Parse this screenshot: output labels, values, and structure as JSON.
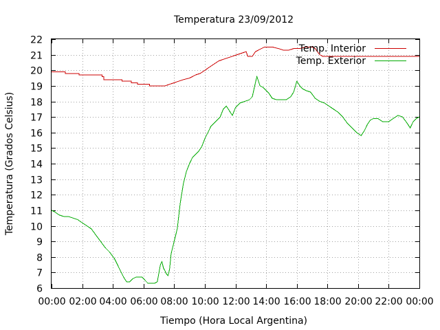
{
  "chart_data": {
    "type": "line",
    "title": "Temperatura 23/09/2012",
    "xlabel": "Tiempo (Hora Local Argentina)",
    "ylabel": "Temperatura (Grados Celsius)",
    "xlim": [
      0,
      24
    ],
    "ylim": [
      6,
      22
    ],
    "x_ticks": [
      {
        "value": 0,
        "label": "00:00"
      },
      {
        "value": 2,
        "label": "02:00"
      },
      {
        "value": 4,
        "label": "04:00"
      },
      {
        "value": 6,
        "label": "06:00"
      },
      {
        "value": 8,
        "label": "08:00"
      },
      {
        "value": 10,
        "label": "10:00"
      },
      {
        "value": 12,
        "label": "12:00"
      },
      {
        "value": 14,
        "label": "14:00"
      },
      {
        "value": 16,
        "label": "16:00"
      },
      {
        "value": 18,
        "label": "18:00"
      },
      {
        "value": 20,
        "label": "20:00"
      },
      {
        "value": 22,
        "label": "22:00"
      },
      {
        "value": 24,
        "label": "00:00"
      }
    ],
    "y_ticks": [
      6,
      7,
      8,
      9,
      10,
      11,
      12,
      13,
      14,
      15,
      16,
      17,
      18,
      19,
      20,
      21,
      22
    ],
    "grid": true,
    "legend_position": "top-right",
    "series": [
      {
        "name": "Temp. Interior",
        "color": "#cc0000",
        "points": [
          [
            0.0,
            19.9
          ],
          [
            0.9,
            19.9
          ],
          [
            0.9,
            19.8
          ],
          [
            1.8,
            19.8
          ],
          [
            1.8,
            19.7
          ],
          [
            3.3,
            19.7
          ],
          [
            3.3,
            19.6
          ],
          [
            3.4,
            19.6
          ],
          [
            3.4,
            19.4
          ],
          [
            4.6,
            19.4
          ],
          [
            4.6,
            19.3
          ],
          [
            5.2,
            19.3
          ],
          [
            5.2,
            19.2
          ],
          [
            5.6,
            19.2
          ],
          [
            5.6,
            19.1
          ],
          [
            6.4,
            19.1
          ],
          [
            6.4,
            19.0
          ],
          [
            7.4,
            19.0
          ],
          [
            7.7,
            19.1
          ],
          [
            8.0,
            19.2
          ],
          [
            8.3,
            19.3
          ],
          [
            8.6,
            19.4
          ],
          [
            9.0,
            19.5
          ],
          [
            9.4,
            19.7
          ],
          [
            9.7,
            19.8
          ],
          [
            10.0,
            20.0
          ],
          [
            10.3,
            20.2
          ],
          [
            10.6,
            20.4
          ],
          [
            10.9,
            20.6
          ],
          [
            11.2,
            20.7
          ],
          [
            11.5,
            20.8
          ],
          [
            11.8,
            20.9
          ],
          [
            12.1,
            21.0
          ],
          [
            12.4,
            21.1
          ],
          [
            12.7,
            21.2
          ],
          [
            12.8,
            20.9
          ],
          [
            13.1,
            20.9
          ],
          [
            13.3,
            21.2
          ],
          [
            13.7,
            21.4
          ],
          [
            13.9,
            21.5
          ],
          [
            14.4,
            21.5
          ],
          [
            14.8,
            21.4
          ],
          [
            15.1,
            21.3
          ],
          [
            15.5,
            21.3
          ],
          [
            15.8,
            21.4
          ],
          [
            16.2,
            21.4
          ],
          [
            16.6,
            21.5
          ],
          [
            17.0,
            21.5
          ],
          [
            17.2,
            21.4
          ],
          [
            17.5,
            21.0
          ],
          [
            17.7,
            20.9
          ],
          [
            24.0,
            20.9
          ]
        ]
      },
      {
        "name": "Temp. Exterior",
        "color": "#00aa00",
        "points": [
          [
            0.0,
            11.0
          ],
          [
            0.2,
            10.9
          ],
          [
            0.5,
            10.7
          ],
          [
            0.8,
            10.6
          ],
          [
            1.1,
            10.6
          ],
          [
            1.4,
            10.5
          ],
          [
            1.7,
            10.4
          ],
          [
            2.0,
            10.2
          ],
          [
            2.3,
            10.0
          ],
          [
            2.6,
            9.8
          ],
          [
            2.9,
            9.4
          ],
          [
            3.2,
            9.0
          ],
          [
            3.5,
            8.6
          ],
          [
            3.8,
            8.3
          ],
          [
            4.1,
            7.9
          ],
          [
            4.3,
            7.5
          ],
          [
            4.5,
            7.1
          ],
          [
            4.7,
            6.7
          ],
          [
            4.9,
            6.4
          ],
          [
            5.1,
            6.4
          ],
          [
            5.3,
            6.6
          ],
          [
            5.5,
            6.7
          ],
          [
            5.9,
            6.7
          ],
          [
            6.1,
            6.5
          ],
          [
            6.3,
            6.3
          ],
          [
            6.7,
            6.3
          ],
          [
            6.9,
            6.4
          ],
          [
            7.1,
            7.5
          ],
          [
            7.2,
            7.7
          ],
          [
            7.3,
            7.3
          ],
          [
            7.4,
            7.1
          ],
          [
            7.5,
            6.9
          ],
          [
            7.6,
            6.8
          ],
          [
            7.7,
            7.2
          ],
          [
            7.8,
            8.2
          ],
          [
            8.0,
            9.0
          ],
          [
            8.2,
            9.8
          ],
          [
            8.4,
            11.5
          ],
          [
            8.6,
            12.7
          ],
          [
            8.8,
            13.5
          ],
          [
            9.0,
            14.0
          ],
          [
            9.2,
            14.4
          ],
          [
            9.4,
            14.6
          ],
          [
            9.6,
            14.8
          ],
          [
            9.8,
            15.1
          ],
          [
            10.0,
            15.6
          ],
          [
            10.2,
            16.0
          ],
          [
            10.4,
            16.4
          ],
          [
            10.6,
            16.6
          ],
          [
            10.8,
            16.8
          ],
          [
            11.0,
            17.0
          ],
          [
            11.2,
            17.5
          ],
          [
            11.4,
            17.7
          ],
          [
            11.6,
            17.4
          ],
          [
            11.8,
            17.1
          ],
          [
            12.0,
            17.6
          ],
          [
            12.3,
            17.9
          ],
          [
            12.6,
            18.0
          ],
          [
            12.9,
            18.1
          ],
          [
            13.1,
            18.3
          ],
          [
            13.3,
            19.2
          ],
          [
            13.4,
            19.6
          ],
          [
            13.6,
            19.0
          ],
          [
            13.8,
            18.9
          ],
          [
            14.0,
            18.7
          ],
          [
            14.2,
            18.5
          ],
          [
            14.4,
            18.2
          ],
          [
            14.7,
            18.1
          ],
          [
            15.0,
            18.1
          ],
          [
            15.3,
            18.1
          ],
          [
            15.6,
            18.3
          ],
          [
            15.8,
            18.6
          ],
          [
            16.0,
            19.3
          ],
          [
            16.2,
            19.0
          ],
          [
            16.4,
            18.8
          ],
          [
            16.6,
            18.7
          ],
          [
            16.9,
            18.6
          ],
          [
            17.2,
            18.2
          ],
          [
            17.5,
            18.0
          ],
          [
            17.8,
            17.9
          ],
          [
            18.1,
            17.7
          ],
          [
            18.4,
            17.5
          ],
          [
            18.7,
            17.3
          ],
          [
            19.0,
            17.0
          ],
          [
            19.3,
            16.6
          ],
          [
            19.6,
            16.3
          ],
          [
            19.9,
            16.0
          ],
          [
            20.2,
            15.8
          ],
          [
            20.4,
            16.1
          ],
          [
            20.6,
            16.5
          ],
          [
            20.8,
            16.8
          ],
          [
            21.0,
            16.9
          ],
          [
            21.3,
            16.9
          ],
          [
            21.6,
            16.7
          ],
          [
            22.0,
            16.7
          ],
          [
            22.3,
            16.9
          ],
          [
            22.6,
            17.1
          ],
          [
            22.9,
            17.0
          ],
          [
            23.2,
            16.6
          ],
          [
            23.4,
            16.3
          ],
          [
            23.6,
            16.7
          ],
          [
            23.8,
            16.9
          ],
          [
            24.0,
            17.0
          ]
        ]
      }
    ]
  }
}
